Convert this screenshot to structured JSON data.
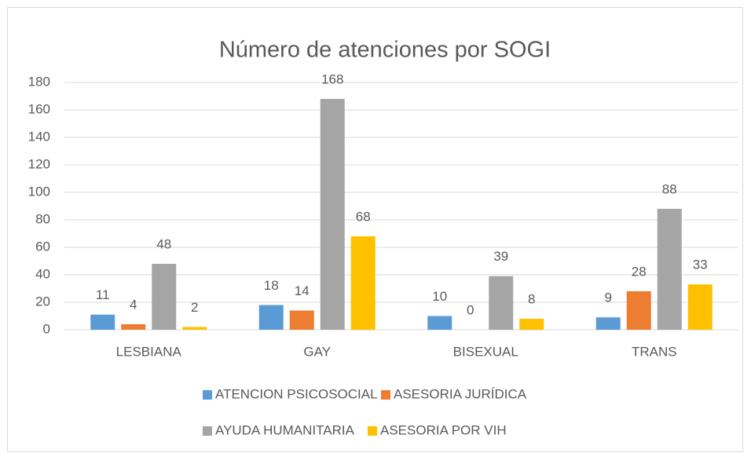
{
  "chart_data": {
    "type": "bar",
    "title": "Número de atenciones por SOGI",
    "categories": [
      "LESBIANA",
      "GAY",
      "BISEXUAL",
      "TRANS"
    ],
    "series": [
      {
        "name": "ATENCION PSICOSOCIAL",
        "color": "#5b9bd5",
        "values": [
          11,
          18,
          10,
          9
        ]
      },
      {
        "name": "ASESORIA JURÍDICA",
        "color": "#ed7d31",
        "values": [
          4,
          14,
          0,
          28
        ]
      },
      {
        "name": "AYUDA HUMANITARIA",
        "color": "#a5a5a5",
        "values": [
          48,
          168,
          39,
          88
        ]
      },
      {
        "name": "ASESORIA POR VIH",
        "color": "#ffc000",
        "values": [
          2,
          68,
          8,
          33
        ]
      }
    ],
    "ylim": [
      0,
      180
    ],
    "yticks": [
      0,
      20,
      40,
      60,
      80,
      100,
      120,
      140,
      160,
      180
    ],
    "grid": true,
    "legend": "bottom"
  }
}
